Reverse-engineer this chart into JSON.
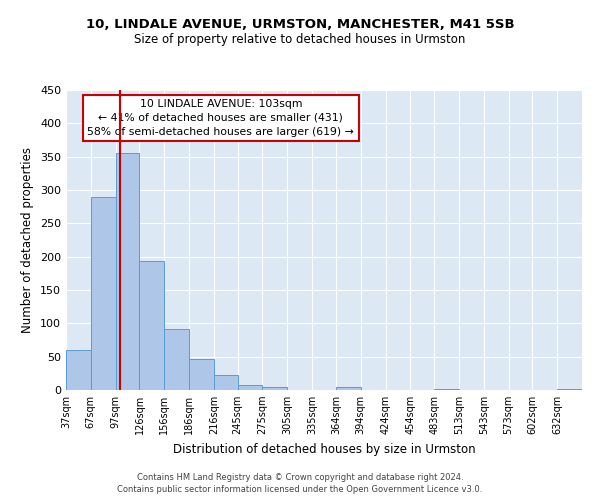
{
  "title1": "10, LINDALE AVENUE, URMSTON, MANCHESTER, M41 5SB",
  "title2": "Size of property relative to detached houses in Urmston",
  "xlabel": "Distribution of detached houses by size in Urmston",
  "ylabel": "Number of detached properties",
  "bin_labels": [
    "37sqm",
    "67sqm",
    "97sqm",
    "126sqm",
    "156sqm",
    "186sqm",
    "216sqm",
    "245sqm",
    "275sqm",
    "305sqm",
    "335sqm",
    "364sqm",
    "394sqm",
    "424sqm",
    "454sqm",
    "483sqm",
    "513sqm",
    "543sqm",
    "573sqm",
    "602sqm",
    "632sqm"
  ],
  "bar_heights": [
    60,
    290,
    355,
    193,
    91,
    46,
    22,
    8,
    5,
    0,
    0,
    4,
    0,
    0,
    0,
    1,
    0,
    0,
    0,
    0,
    2
  ],
  "bar_color": "#aec6e8",
  "bar_edge_color": "#5b9bd5",
  "vline_x": 103,
  "vline_color": "#cc0000",
  "annotation_line1": "10 LINDALE AVENUE: 103sqm",
  "annotation_line2": "← 41% of detached houses are smaller (431)",
  "annotation_line3": "58% of semi-detached houses are larger (619) →",
  "annotation_box_color": "#ffffff",
  "annotation_box_edge": "#cc0000",
  "footer1": "Contains HM Land Registry data © Crown copyright and database right 2024.",
  "footer2": "Contains public sector information licensed under the Open Government Licence v3.0.",
  "ylim": [
    0,
    450
  ],
  "bin_edges": [
    37,
    67,
    97,
    126,
    156,
    186,
    216,
    245,
    275,
    305,
    335,
    364,
    394,
    424,
    454,
    483,
    513,
    543,
    573,
    602,
    632,
    662
  ]
}
